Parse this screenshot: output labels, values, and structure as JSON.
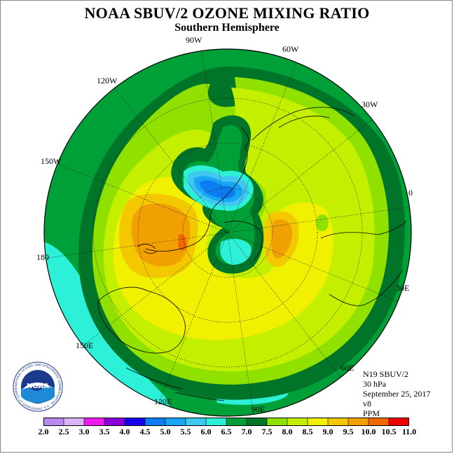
{
  "title": "NOAA SBUV/2 OZONE MIXING RATIO",
  "subtitle": "Southern Hemisphere",
  "longitude_labels": {
    "w90": "90W",
    "w60": "60W",
    "w30": "30W",
    "zero": "0",
    "e30": "30E",
    "e60": "60E",
    "e90": "90E",
    "e120": "120E",
    "e150": "150E",
    "d180": "180",
    "w150": "150W",
    "w120": "120W"
  },
  "info": {
    "instrument": "N19 SBUV/2",
    "level": "30 hPa",
    "date": "September 25, 2017",
    "version": "v8",
    "units": "PPM"
  },
  "logo": {
    "text": "NOAA",
    "ring_text": "NATIONAL OCEANIC AND ATMOSPHERIC ADMINISTRATION · U.S. DEPARTMENT OF COMMERCE"
  },
  "colorbar": {
    "ticks": [
      "2.0",
      "2.5",
      "3.0",
      "3.5",
      "4.0",
      "4.5",
      "5.0",
      "5.5",
      "6.0",
      "6.5",
      "7.0",
      "7.5",
      "8.0",
      "8.5",
      "9.0",
      "9.5",
      "10.0",
      "10.5",
      "11.0"
    ],
    "colors": [
      "#b988f0",
      "#d8b4f4",
      "#ee1cee",
      "#8a00d8",
      "#1800f0",
      "#0c7cf0",
      "#18a6f4",
      "#40c8f0",
      "#2cf0d8",
      "#00a038",
      "#007428",
      "#90e000",
      "#c4f000",
      "#f0f000",
      "#f4c800",
      "#f0a000",
      "#f06800",
      "#f00000",
      "#8c4c34"
    ]
  },
  "colors": {
    "c6_0": "#2cf0d8",
    "c6_5": "#00a038",
    "c7_0": "#007428",
    "c7_5": "#90e000",
    "c8_0": "#c4f000",
    "c8_5": "#f0f000",
    "c9_0": "#f4c800",
    "c9_5": "#f0a000",
    "c10_0": "#f06800",
    "c5_0": "#18a6f4",
    "c4_5": "#0c7cf0",
    "c5_5": "#40c8f0"
  }
}
